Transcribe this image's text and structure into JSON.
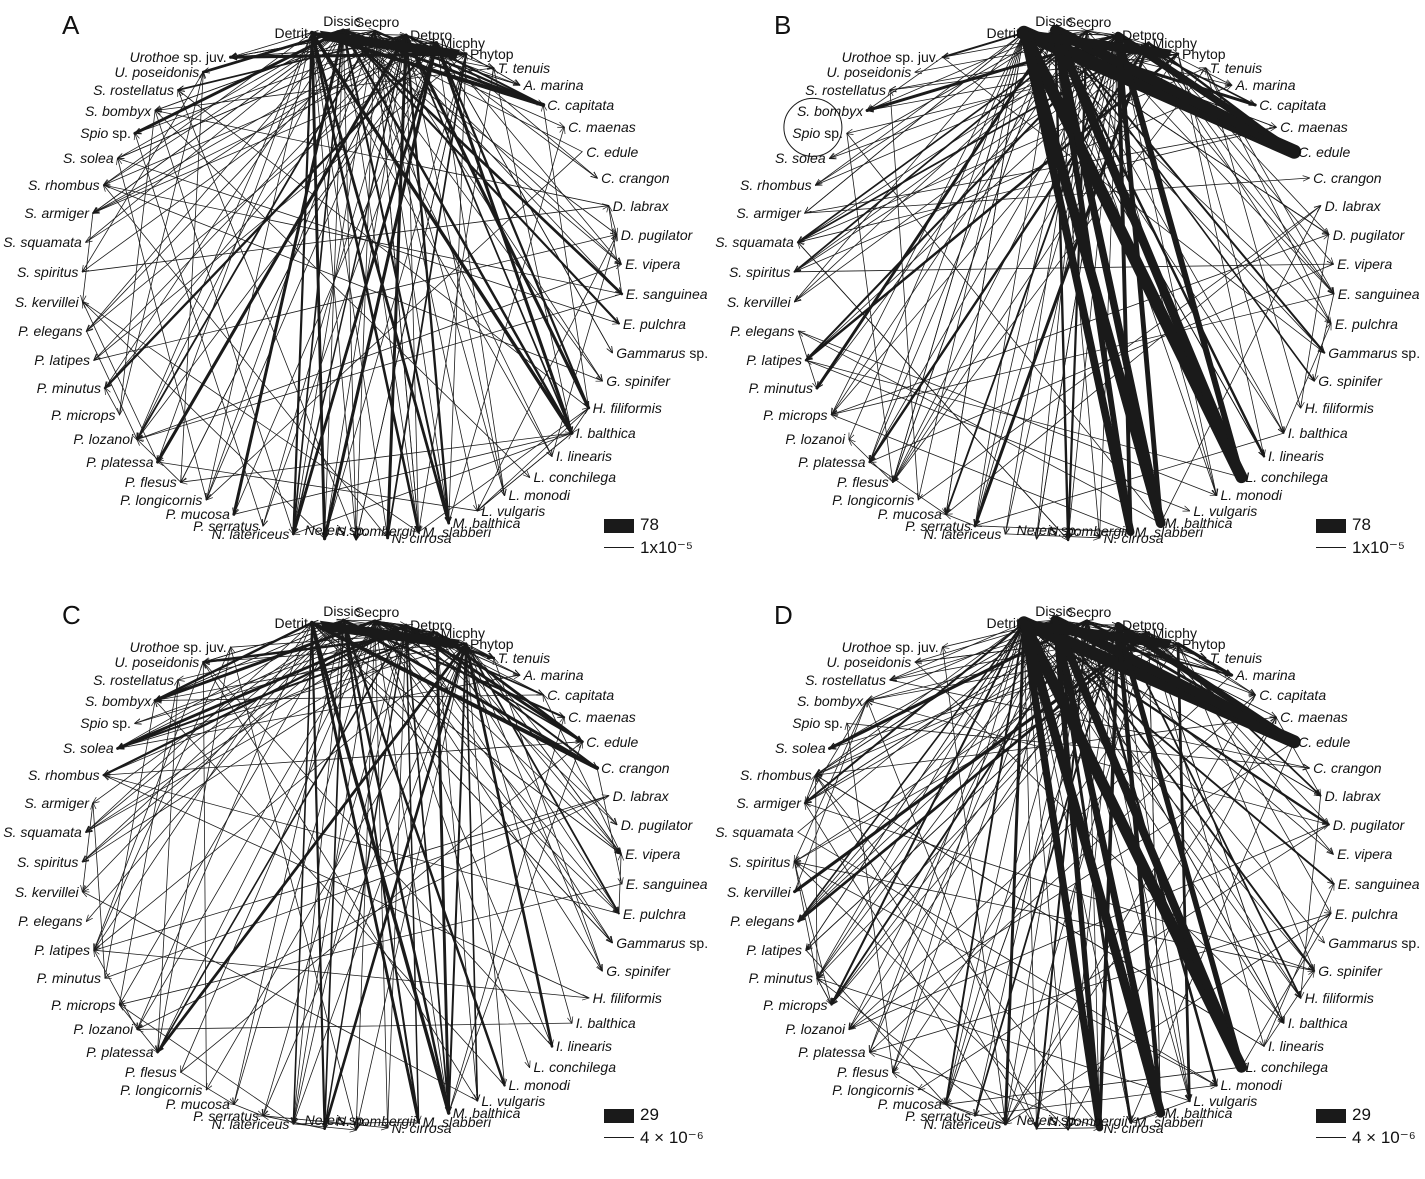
{
  "node_labels": [
    {
      "text": "Detrit"
    },
    {
      "text": "Dissic"
    },
    {
      "text": "Secpro"
    },
    {
      "text": "Detpro"
    },
    {
      "text": "Micphy"
    },
    {
      "text": "Phytop"
    },
    {
      "italic": "T. tenuis"
    },
    {
      "italic": "A. marina"
    },
    {
      "italic": "C. capitata"
    },
    {
      "italic": "C. maenas"
    },
    {
      "italic": "C. edule"
    },
    {
      "italic": "C. crangon"
    },
    {
      "italic": "D. labrax"
    },
    {
      "italic": "D. pugilator"
    },
    {
      "italic": "E. vipera"
    },
    {
      "italic": "E. sanguinea"
    },
    {
      "italic": "E. pulchra"
    },
    {
      "italic": "Gammarus",
      "plain": " sp."
    },
    {
      "italic": "G. spinifer"
    },
    {
      "italic": "H. filiformis"
    },
    {
      "italic": "I. balthica"
    },
    {
      "italic": "I. linearis"
    },
    {
      "italic": "L. conchilega"
    },
    {
      "italic": "L. monodi"
    },
    {
      "italic": "L. vulgaris"
    },
    {
      "italic": "M. balthica"
    },
    {
      "italic": "M. slabberi"
    },
    {
      "italic": "N. cirrosa"
    },
    {
      "italic": "N. hombergii"
    },
    {
      "italic": "Nereis",
      "plain": " sp."
    },
    {
      "italic": "N. latericeus"
    },
    {
      "italic": "P. serratus"
    },
    {
      "italic": "P. mucosa"
    },
    {
      "italic": "P. longicornis"
    },
    {
      "italic": "P. flesus"
    },
    {
      "italic": "P. platessa"
    },
    {
      "italic": "P. lozanoi"
    },
    {
      "italic": "P. microps"
    },
    {
      "italic": "P. minutus"
    },
    {
      "italic": "P. latipes"
    },
    {
      "italic": "P. elegans"
    },
    {
      "italic": "S. kervillei"
    },
    {
      "italic": "S. spiritus"
    },
    {
      "italic": "S. squamata"
    },
    {
      "italic": "S. armiger"
    },
    {
      "italic": "S. rhombus"
    },
    {
      "italic": "S. solea"
    },
    {
      "italic": "Spio",
      "plain": " sp."
    },
    {
      "italic": "S. bombyx"
    },
    {
      "italic": "S. rostellatus"
    },
    {
      "italic": "U. poseidonis"
    },
    {
      "italic": "Urothoe",
      "plain": " sp. juv."
    }
  ],
  "panels": [
    {
      "letter": "A",
      "legend": {
        "max": "78",
        "min": "1x10⁻⁵"
      },
      "self_loop": null
    },
    {
      "letter": "B",
      "legend": {
        "max": "78",
        "min": "1x10⁻⁵"
      },
      "self_loop": "Spio sp."
    },
    {
      "letter": "C",
      "legend": {
        "max": "29",
        "min": "4 × 10⁻⁶"
      },
      "self_loop": null
    },
    {
      "letter": "D",
      "legend": {
        "max": "29",
        "min": "4 × 10⁻⁶"
      },
      "self_loop": null
    }
  ],
  "colors": {
    "ink": "#1a1a1a",
    "background": "#ffffff"
  }
}
